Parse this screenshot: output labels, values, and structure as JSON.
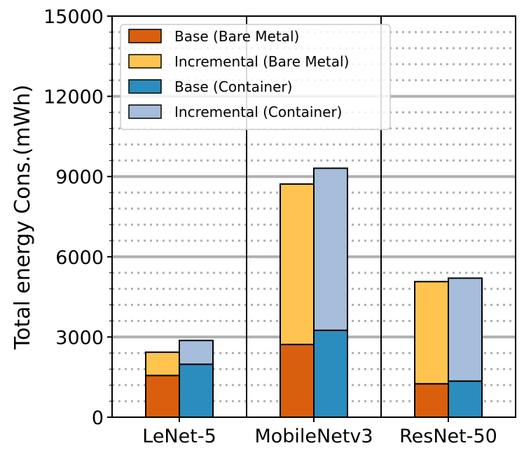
{
  "chart_data": {
    "type": "bar",
    "subtype": "stacked-grouped",
    "title": "",
    "xlabel": "",
    "ylabel": "Total energy Cons.(mWh)",
    "ylim": [
      0,
      15000
    ],
    "yticks": [
      "0",
      "3000",
      "6000",
      "9000",
      "12000",
      "15000"
    ],
    "categories": [
      "LeNet-5",
      "MobileNetv3",
      "ResNet-50"
    ],
    "grid": {
      "major": true,
      "minor": "dotted",
      "major_step": 3000,
      "minor_step": 600
    },
    "legend": {
      "position": "top-left"
    },
    "series": [
      {
        "name": "Base (Bare Metal)",
        "group": "Bare Metal",
        "stack": "base",
        "color": "#d95f0e",
        "values": [
          1560,
          2720,
          1250
        ]
      },
      {
        "name": "Incremental (Bare Metal)",
        "group": "Bare Metal",
        "stack": "incremental",
        "color": "#fec44f",
        "values": [
          870,
          6000,
          3820
        ]
      },
      {
        "name": "Base (Container)",
        "group": "Container",
        "stack": "base",
        "color": "#2b8cbe",
        "values": [
          1980,
          3250,
          1350
        ]
      },
      {
        "name": "Incremental (Container)",
        "group": "Container",
        "stack": "incremental",
        "color": "#a6bddb",
        "values": [
          890,
          6060,
          3850
        ]
      }
    ]
  }
}
